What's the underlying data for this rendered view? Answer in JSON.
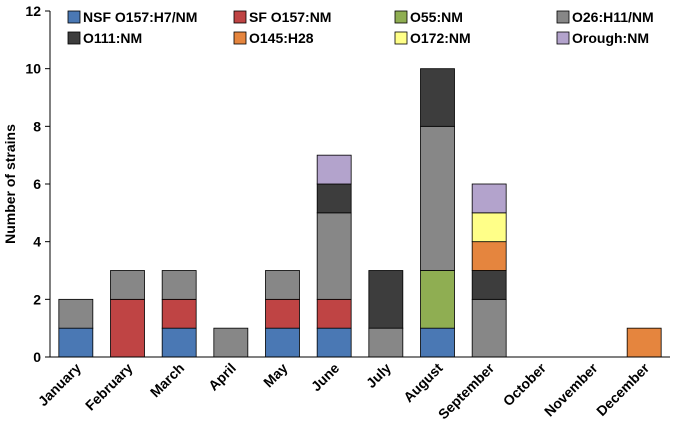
{
  "chart_data": {
    "type": "bar",
    "stacked": true,
    "title": "",
    "xlabel": "",
    "ylabel": "Number of strains",
    "ylim": [
      0,
      12
    ],
    "yticks": [
      0,
      2,
      4,
      6,
      8,
      10,
      12
    ],
    "grid": false,
    "legend_position": "top",
    "categories": [
      "January",
      "February",
      "March",
      "April",
      "May",
      "June",
      "July",
      "August",
      "September",
      "October",
      "November",
      "December"
    ],
    "series": [
      {
        "name": "NSF O157:H7/NM",
        "color": "#4a78b4",
        "values": [
          1,
          0,
          1,
          0,
          1,
          1,
          0,
          1,
          0,
          0,
          0,
          0
        ]
      },
      {
        "name": "SF O157:NM",
        "color": "#bf4444",
        "values": [
          0,
          2,
          1,
          0,
          1,
          1,
          0,
          0,
          0,
          0,
          0,
          0
        ]
      },
      {
        "name": "O55:NM",
        "color": "#8fae52",
        "values": [
          0,
          0,
          0,
          0,
          0,
          0,
          0,
          2,
          0,
          0,
          0,
          0
        ]
      },
      {
        "name": "O26:H11/NM",
        "color": "#878787",
        "values": [
          1,
          1,
          1,
          1,
          1,
          3,
          1,
          5,
          2,
          0,
          0,
          0
        ]
      },
      {
        "name": "O111:NM",
        "color": "#3d3d3d",
        "values": [
          0,
          0,
          0,
          0,
          0,
          1,
          2,
          2,
          1,
          0,
          0,
          0
        ]
      },
      {
        "name": "O145:H28",
        "color": "#e5853e",
        "values": [
          0,
          0,
          0,
          0,
          0,
          0,
          0,
          0,
          1,
          0,
          0,
          1
        ]
      },
      {
        "name": "O172:NM",
        "color": "#ffff88",
        "values": [
          0,
          0,
          0,
          0,
          0,
          0,
          0,
          0,
          1,
          0,
          0,
          0
        ]
      },
      {
        "name": "Orough:NM",
        "color": "#b3a3cc",
        "values": [
          0,
          0,
          0,
          0,
          0,
          1,
          0,
          0,
          1,
          0,
          0,
          0
        ]
      }
    ]
  }
}
